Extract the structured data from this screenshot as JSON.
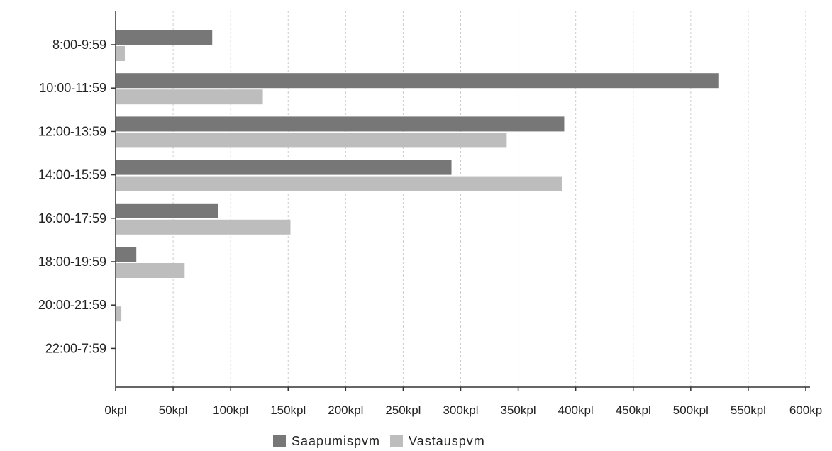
{
  "chart_data": {
    "type": "bar",
    "orientation": "horizontal",
    "title": "",
    "xlabel": "",
    "ylabel": "",
    "categories": [
      "8:00-9:59",
      "10:00-11:59",
      "12:00-13:59",
      "14:00-15:59",
      "16:00-17:59",
      "18:00-19:59",
      "20:00-21:59",
      "22:00-7:59"
    ],
    "series": [
      {
        "name": "Saapumispvm",
        "color": "#777777",
        "values": [
          84,
          524,
          390,
          292,
          89,
          18,
          0,
          0
        ]
      },
      {
        "name": "Vastauspvm",
        "color": "#bdbdbd",
        "values": [
          8,
          128,
          340,
          388,
          152,
          60,
          5,
          0
        ]
      }
    ],
    "xlim": [
      0,
      600
    ],
    "xticks": [
      0,
      50,
      100,
      150,
      200,
      250,
      300,
      350,
      400,
      450,
      500,
      550,
      600
    ],
    "xtick_labels": [
      "0kpl",
      "50kpl",
      "100kpl",
      "150kpl",
      "200kpl",
      "250kpl",
      "300kpl",
      "350kpl",
      "400kpl",
      "450kpl",
      "500kpl",
      "550kpl",
      "600kp"
    ],
    "grid": "vertical dashed",
    "legend_position": "bottom-center"
  }
}
